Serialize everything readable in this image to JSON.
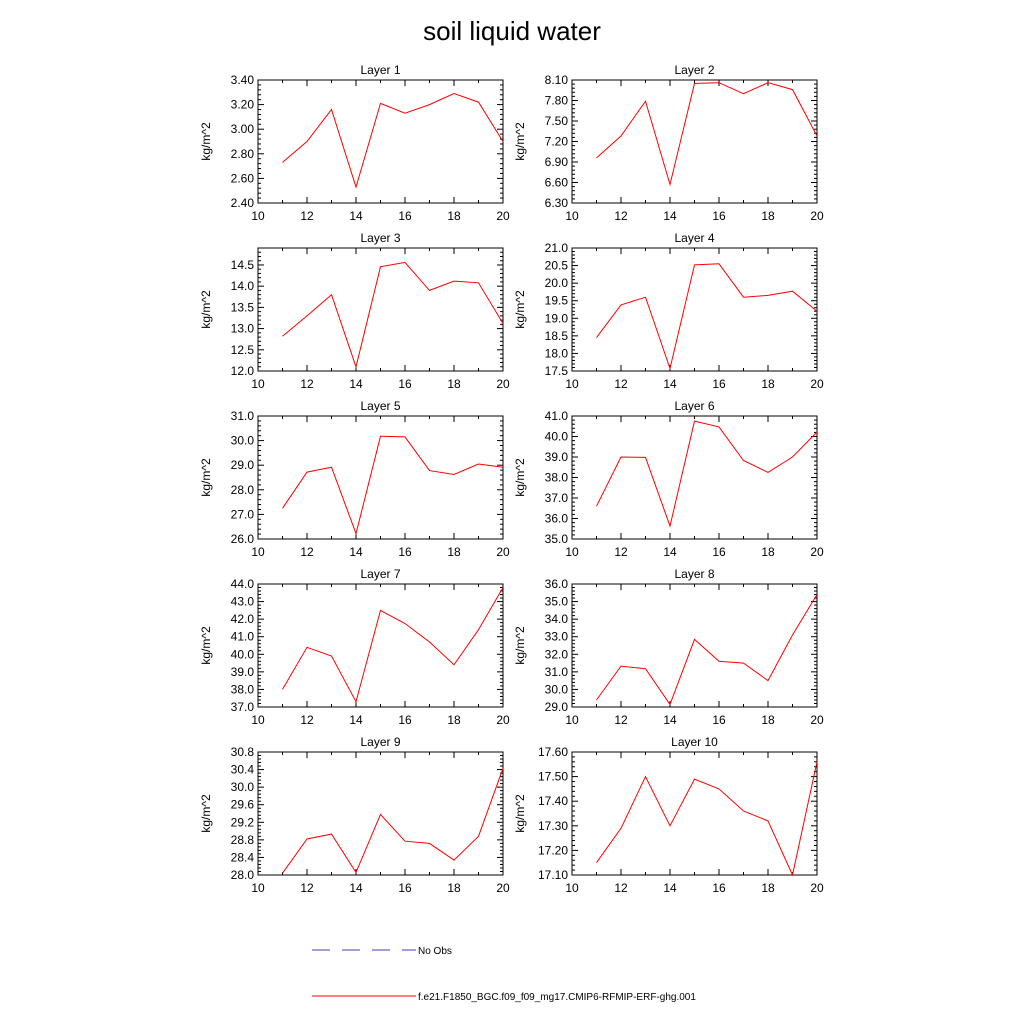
{
  "title": "soil liquid water",
  "chart_data": [
    {
      "type": "line",
      "title": "Layer 1",
      "ylabel": "kg/m^2",
      "xlim": [
        10,
        20
      ],
      "xticks": [
        "10",
        "12",
        "14",
        "16",
        "18",
        "20"
      ],
      "ylim": [
        2.4,
        3.4
      ],
      "yticks": [
        "2.40",
        "2.60",
        "2.80",
        "3.00",
        "3.20",
        "3.40"
      ],
      "x": [
        11,
        12,
        13,
        14,
        15,
        16,
        17,
        18,
        19,
        20
      ],
      "series": [
        {
          "name": "f.e21.F1850_BGC.f09_f09_mg17.CMIP6-RFMIP-ERF-ghg.001",
          "values": [
            2.73,
            2.9,
            3.16,
            2.53,
            3.21,
            3.13,
            3.2,
            3.29,
            3.22,
            2.9
          ]
        }
      ]
    },
    {
      "type": "line",
      "title": "Layer 2",
      "ylabel": "kg/m^2",
      "xlim": [
        10,
        20
      ],
      "xticks": [
        "10",
        "12",
        "14",
        "16",
        "18",
        "20"
      ],
      "ylim": [
        6.3,
        8.1
      ],
      "yticks": [
        "6.30",
        "6.60",
        "6.90",
        "7.20",
        "7.50",
        "7.80",
        "8.10"
      ],
      "x": [
        11,
        12,
        13,
        14,
        15,
        16,
        17,
        18,
        19,
        20
      ],
      "series": [
        {
          "name": "f.e21.F1850_BGC.f09_f09_mg17.CMIP6-RFMIP-ERF-ghg.001",
          "values": [
            6.96,
            7.28,
            7.79,
            6.57,
            8.05,
            8.06,
            7.9,
            8.06,
            7.96,
            7.28
          ]
        }
      ]
    },
    {
      "type": "line",
      "title": "Layer 3",
      "ylabel": "kg/m^2",
      "xlim": [
        10,
        20
      ],
      "xticks": [
        "10",
        "12",
        "14",
        "16",
        "18",
        "20"
      ],
      "ylim": [
        12.0,
        14.9
      ],
      "yticks": [
        "12.0",
        "12.5",
        "13.0",
        "13.5",
        "14.0",
        "14.5"
      ],
      "x": [
        11,
        12,
        13,
        14,
        15,
        16,
        17,
        18,
        19,
        20
      ],
      "series": [
        {
          "name": "f.e21.F1850_BGC.f09_f09_mg17.CMIP6-RFMIP-ERF-ghg.001",
          "values": [
            12.82,
            13.3,
            13.8,
            12.1,
            14.46,
            14.56,
            13.9,
            14.12,
            14.08,
            13.12
          ]
        }
      ]
    },
    {
      "type": "line",
      "title": "Layer 4",
      "ylabel": "kg/m^2",
      "xlim": [
        10,
        20
      ],
      "xticks": [
        "10",
        "12",
        "14",
        "16",
        "18",
        "20"
      ],
      "ylim": [
        17.5,
        21.0
      ],
      "yticks": [
        "17.5",
        "18.0",
        "18.5",
        "19.0",
        "19.5",
        "20.0",
        "20.5",
        "21.0"
      ],
      "x": [
        11,
        12,
        13,
        14,
        15,
        16,
        17,
        18,
        19,
        20
      ],
      "series": [
        {
          "name": "f.e21.F1850_BGC.f09_f09_mg17.CMIP6-RFMIP-ERF-ghg.001",
          "values": [
            18.45,
            19.38,
            19.6,
            17.57,
            20.52,
            20.55,
            19.6,
            19.65,
            19.77,
            19.2
          ]
        }
      ]
    },
    {
      "type": "line",
      "title": "Layer 5",
      "ylabel": "kg/m^2",
      "xlim": [
        10,
        20
      ],
      "xticks": [
        "10",
        "12",
        "14",
        "16",
        "18",
        "20"
      ],
      "ylim": [
        26.0,
        31.0
      ],
      "yticks": [
        "26.0",
        "27.0",
        "28.0",
        "29.0",
        "30.0",
        "31.0"
      ],
      "x": [
        11,
        12,
        13,
        14,
        15,
        16,
        17,
        18,
        19,
        20
      ],
      "series": [
        {
          "name": "f.e21.F1850_BGC.f09_f09_mg17.CMIP6-RFMIP-ERF-ghg.001",
          "values": [
            27.25,
            28.72,
            28.92,
            26.22,
            30.18,
            30.15,
            28.78,
            28.62,
            29.05,
            28.92
          ]
        }
      ]
    },
    {
      "type": "line",
      "title": "Layer 6",
      "ylabel": "kg/m^2",
      "xlim": [
        10,
        20
      ],
      "xticks": [
        "10",
        "12",
        "14",
        "16",
        "18",
        "20"
      ],
      "ylim": [
        35.0,
        41.0
      ],
      "yticks": [
        "35.0",
        "36.0",
        "37.0",
        "38.0",
        "39.0",
        "40.0",
        "41.0"
      ],
      "x": [
        11,
        12,
        13,
        14,
        15,
        16,
        17,
        18,
        19,
        20
      ],
      "series": [
        {
          "name": "f.e21.F1850_BGC.f09_f09_mg17.CMIP6-RFMIP-ERF-ghg.001",
          "values": [
            36.6,
            39.0,
            38.98,
            35.63,
            40.75,
            40.47,
            38.83,
            38.25,
            39.0,
            40.22
          ]
        }
      ]
    },
    {
      "type": "line",
      "title": "Layer 7",
      "ylabel": "kg/m^2",
      "xlim": [
        10,
        20
      ],
      "xticks": [
        "10",
        "12",
        "14",
        "16",
        "18",
        "20"
      ],
      "ylim": [
        37.0,
        44.0
      ],
      "yticks": [
        "37.0",
        "38.0",
        "39.0",
        "40.0",
        "41.0",
        "42.0",
        "43.0",
        "44.0"
      ],
      "x": [
        11,
        12,
        13,
        14,
        15,
        16,
        17,
        18,
        19,
        20
      ],
      "series": [
        {
          "name": "f.e21.F1850_BGC.f09_f09_mg17.CMIP6-RFMIP-ERF-ghg.001",
          "values": [
            38.0,
            40.4,
            39.9,
            37.3,
            42.5,
            41.75,
            40.7,
            39.4,
            41.4,
            43.8
          ]
        }
      ]
    },
    {
      "type": "line",
      "title": "Layer 8",
      "ylabel": "kg/m^2",
      "xlim": [
        10,
        20
      ],
      "xticks": [
        "10",
        "12",
        "14",
        "16",
        "18",
        "20"
      ],
      "ylim": [
        29.0,
        36.0
      ],
      "yticks": [
        "29.0",
        "30.0",
        "31.0",
        "32.0",
        "33.0",
        "34.0",
        "35.0",
        "36.0"
      ],
      "x": [
        11,
        12,
        13,
        14,
        15,
        16,
        17,
        18,
        19,
        20
      ],
      "series": [
        {
          "name": "f.e21.F1850_BGC.f09_f09_mg17.CMIP6-RFMIP-ERF-ghg.001",
          "values": [
            29.4,
            31.33,
            31.18,
            29.15,
            32.85,
            31.6,
            31.5,
            30.5,
            33.1,
            35.4
          ]
        }
      ]
    },
    {
      "type": "line",
      "title": "Layer 9",
      "ylabel": "kg/m^2",
      "xlim": [
        10,
        20
      ],
      "xticks": [
        "10",
        "12",
        "14",
        "16",
        "18",
        "20"
      ],
      "ylim": [
        28.0,
        30.8
      ],
      "yticks": [
        "28.0",
        "28.4",
        "28.8",
        "29.2",
        "29.6",
        "30.0",
        "30.4",
        "30.8"
      ],
      "x": [
        11,
        12,
        13,
        14,
        15,
        16,
        17,
        18,
        19,
        20
      ],
      "series": [
        {
          "name": "f.e21.F1850_BGC.f09_f09_mg17.CMIP6-RFMIP-ERF-ghg.001",
          "values": [
            28.04,
            28.82,
            28.93,
            28.06,
            29.38,
            28.77,
            28.72,
            28.34,
            28.88,
            30.43
          ]
        }
      ]
    },
    {
      "type": "line",
      "title": "Layer 10",
      "ylabel": "kg/m^2",
      "xlim": [
        10,
        20
      ],
      "xticks": [
        "10",
        "12",
        "14",
        "16",
        "18",
        "20"
      ],
      "ylim": [
        17.1,
        17.6
      ],
      "yticks": [
        "17.10",
        "17.20",
        "17.30",
        "17.40",
        "17.50",
        "17.60"
      ],
      "x": [
        11,
        12,
        13,
        14,
        15,
        16,
        17,
        18,
        19,
        20
      ],
      "series": [
        {
          "name": "f.e21.F1850_BGC.f09_f09_mg17.CMIP6-RFMIP-ERF-ghg.001",
          "values": [
            17.15,
            17.29,
            17.5,
            17.3,
            17.49,
            17.45,
            17.36,
            17.32,
            17.1,
            17.56
          ]
        }
      ]
    }
  ],
  "legend": {
    "items": [
      {
        "label": "No Obs",
        "color": "#3f3fbf",
        "dash": "dashed"
      },
      {
        "label": "f.e21.F1850_BGC.f09_f09_mg17.CMIP6-RFMIP-ERF-ghg.001",
        "color": "#ff0000",
        "dash": "solid"
      }
    ]
  },
  "series_color": "#ff0000"
}
